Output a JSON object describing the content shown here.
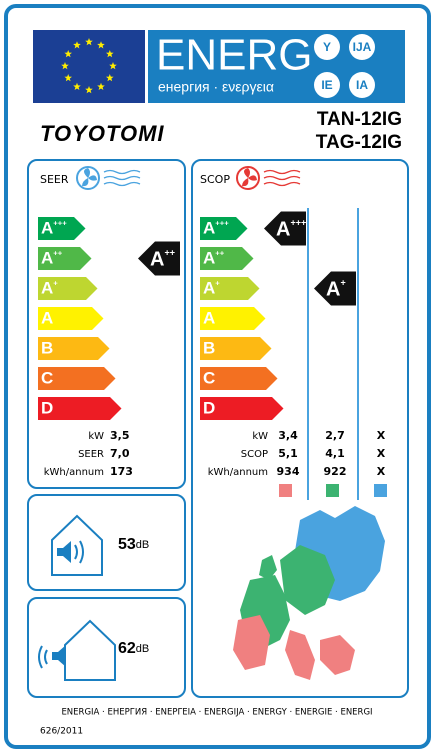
{
  "header": {
    "energy": "ENERG",
    "subtitle": "енергия · ενεργεια",
    "suffixes": [
      "Y",
      "IJA",
      "IE",
      "IA"
    ]
  },
  "brand": "TOYOTOMI",
  "models": [
    "TAN-12IG",
    "TAG-12IG"
  ],
  "classes": [
    {
      "letter": "A",
      "sup": "+++"
    },
    {
      "letter": "A",
      "sup": "++"
    },
    {
      "letter": "A",
      "sup": "+"
    },
    {
      "letter": "A",
      "sup": ""
    },
    {
      "letter": "B",
      "sup": ""
    },
    {
      "letter": "C",
      "sup": ""
    },
    {
      "letter": "D",
      "sup": ""
    }
  ],
  "cooling": {
    "label": "SEER",
    "rating": {
      "letter": "A",
      "sup": "++"
    },
    "rows": [
      {
        "label": "kW",
        "value": "3,5"
      },
      {
        "label": "SEER",
        "value": "7,0"
      },
      {
        "label": "kWh/annum",
        "value": "173"
      }
    ]
  },
  "heating": {
    "label": "SCOP",
    "ratings": [
      {
        "letter": "A",
        "sup": "+++"
      },
      {
        "letter": "A",
        "sup": "+"
      }
    ],
    "rows": [
      {
        "label": "kW",
        "values": [
          "3,4",
          "2,7",
          "X"
        ]
      },
      {
        "label": "SCOP",
        "values": [
          "5,1",
          "4,1",
          "X"
        ]
      },
      {
        "label": "kWh/annum",
        "values": [
          "934",
          "922",
          "X"
        ]
      }
    ]
  },
  "noise": [
    {
      "value": "53",
      "unit": "dB"
    },
    {
      "value": "62",
      "unit": "dB"
    }
  ],
  "footer": {
    "languages": "ENERGIA · ЕНЕРГИЯ · ΕΝΕΡΓΕΙΑ · ENERGIJA · ENERGY · ENERGIE · ENERGI",
    "regulation": "626/2011"
  }
}
